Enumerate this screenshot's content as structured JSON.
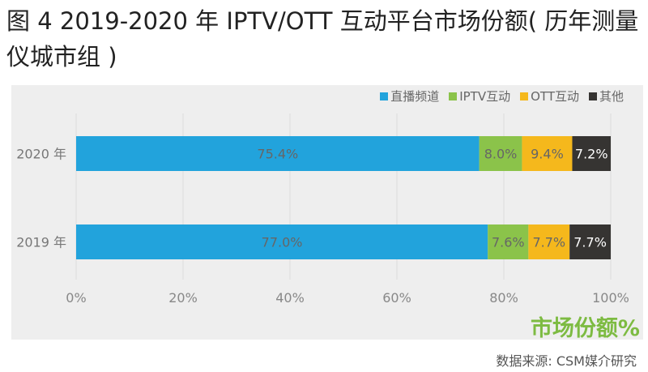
{
  "title": "图 4 2019-2020 年 IPTV/OTT 互动平台市场份额( 历年测量仪城市组 )",
  "unit_label": "市场份额%",
  "source": "数据来源: CSM媒介研究",
  "chart_data": {
    "type": "bar",
    "orientation": "horizontal",
    "stacked": true,
    "categories": [
      "2020 年",
      "2019 年"
    ],
    "series": [
      {
        "name": "直播频道",
        "color": "#22a3dc",
        "values": [
          75.4,
          77.0
        ],
        "labels": [
          "75.4%",
          "77.0%"
        ]
      },
      {
        "name": "IPTV互动",
        "color": "#8bc34a",
        "values": [
          8.0,
          7.6
        ],
        "labels": [
          "8.0%",
          "7.6%"
        ]
      },
      {
        "name": "OTT互动",
        "color": "#f5b81c",
        "values": [
          9.4,
          7.7
        ],
        "labels": [
          "9.4%",
          "7.7%"
        ]
      },
      {
        "name": "其他",
        "color": "#363432",
        "values": [
          7.2,
          7.7
        ],
        "labels": [
          "7.2%",
          "7.7%"
        ]
      }
    ],
    "xlim": [
      0,
      100
    ],
    "xticks": [
      "0%",
      "20%",
      "40%",
      "60%",
      "80%",
      "100%"
    ],
    "grid": true,
    "legend": "top-right"
  }
}
